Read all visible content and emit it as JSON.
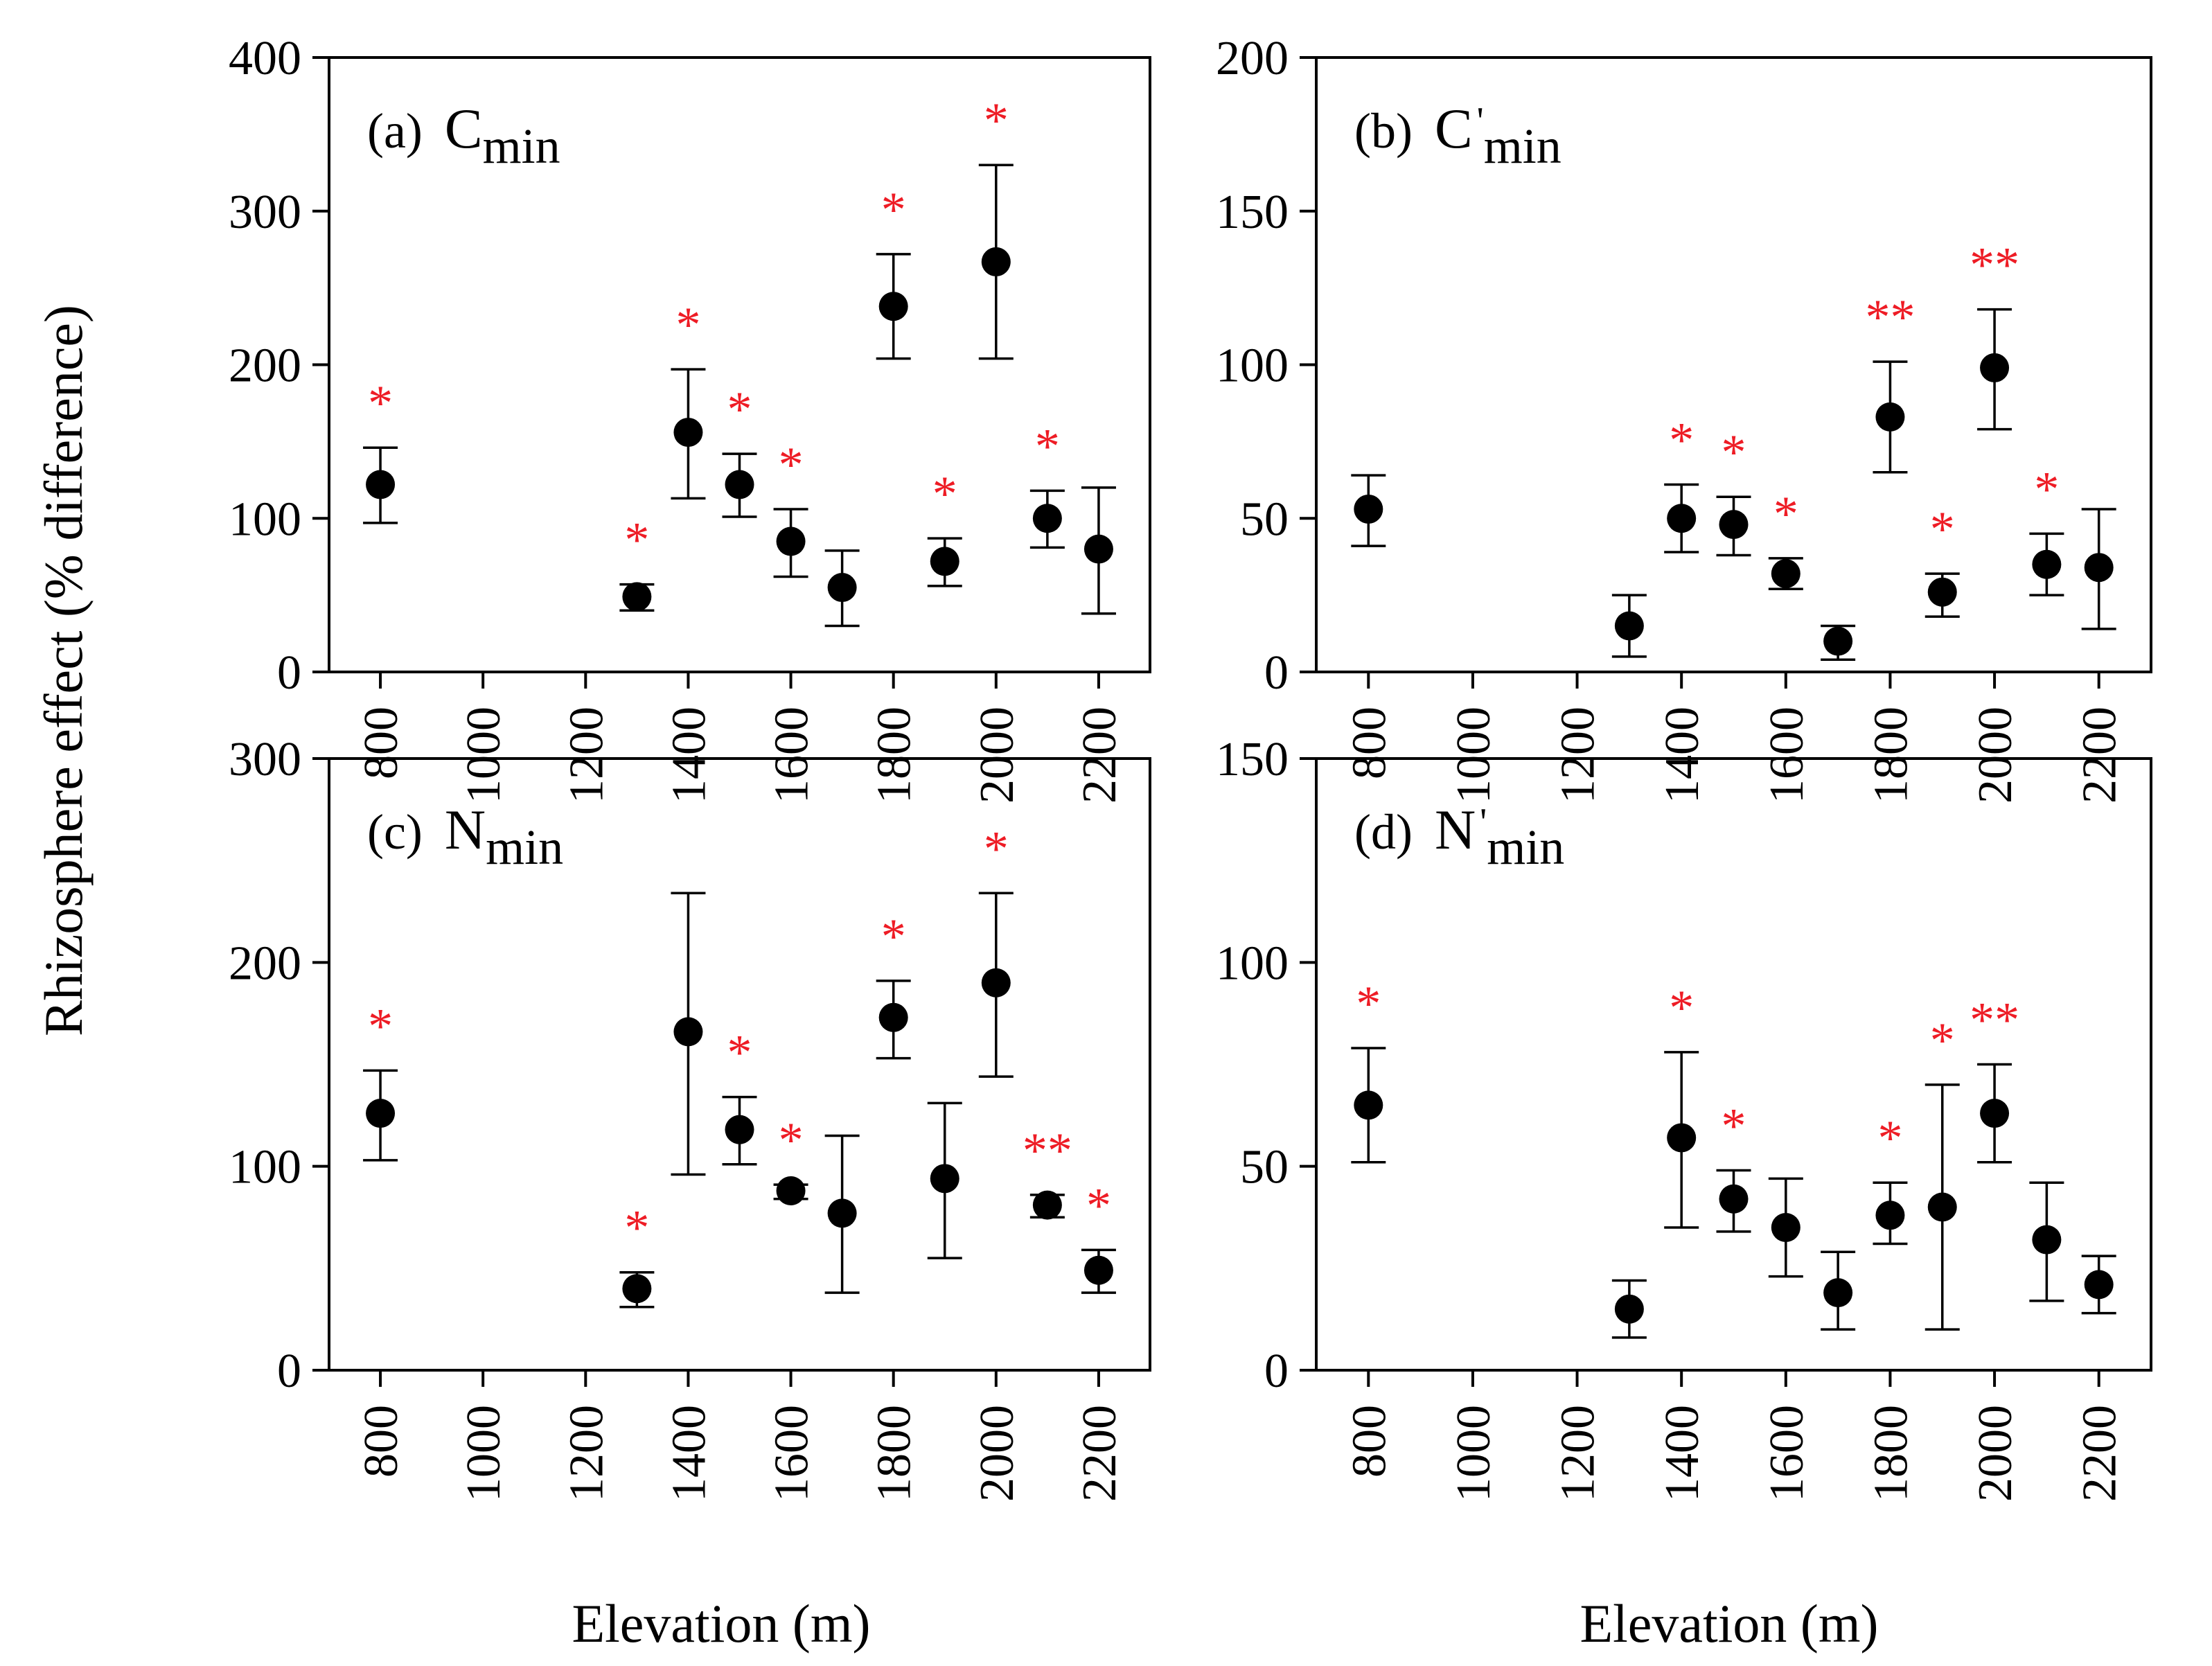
{
  "figure": {
    "ylabel": "Rhizosphere effect (% difference)",
    "xlabel": "Elevation (m)",
    "colors": {
      "marker": "#000000",
      "significance": "#ee1c25",
      "axis": "#000000"
    }
  },
  "chart_data": [
    {
      "type": "scatter",
      "panel": "a",
      "label_prefix": "(a)",
      "var_main": "C",
      "var_prime": "",
      "var_sub": "min",
      "x_ticks": [
        "800",
        "1000",
        "1200",
        "1400",
        "1600",
        "1800",
        "2000",
        "2200"
      ],
      "y_ticks": [
        "0",
        "100",
        "200",
        "300",
        "400"
      ],
      "ylim": [
        0,
        400
      ],
      "xlim": [
        700,
        2300
      ],
      "points": [
        {
          "x": 800,
          "y": 122,
          "lo": 97,
          "hi": 146,
          "sig": "*"
        },
        {
          "x": 1300,
          "y": 49,
          "lo": 40,
          "hi": 57,
          "sig": "*"
        },
        {
          "x": 1400,
          "y": 156,
          "lo": 113,
          "hi": 197,
          "sig": "*"
        },
        {
          "x": 1500,
          "y": 122,
          "lo": 101,
          "hi": 142,
          "sig": "*"
        },
        {
          "x": 1600,
          "y": 85,
          "lo": 62,
          "hi": 106,
          "sig": "*"
        },
        {
          "x": 1700,
          "y": 55,
          "lo": 30,
          "hi": 79,
          "sig": ""
        },
        {
          "x": 1800,
          "y": 238,
          "lo": 204,
          "hi": 272,
          "sig": "*"
        },
        {
          "x": 1900,
          "y": 72,
          "lo": 56,
          "hi": 87,
          "sig": "*"
        },
        {
          "x": 2000,
          "y": 267,
          "lo": 204,
          "hi": 330,
          "sig": "*"
        },
        {
          "x": 2100,
          "y": 100,
          "lo": 81,
          "hi": 118,
          "sig": "*"
        },
        {
          "x": 2200,
          "y": 80,
          "lo": 38,
          "hi": 120,
          "sig": ""
        }
      ]
    },
    {
      "type": "scatter",
      "panel": "b",
      "label_prefix": "(b)",
      "var_main": "C",
      "var_prime": "'",
      "var_sub": "min",
      "x_ticks": [
        "800",
        "1000",
        "1200",
        "1400",
        "1600",
        "1800",
        "2000",
        "2200"
      ],
      "y_ticks": [
        "0",
        "50",
        "100",
        "150",
        "200"
      ],
      "ylim": [
        0,
        200
      ],
      "xlim": [
        700,
        2300
      ],
      "points": [
        {
          "x": 800,
          "y": 53,
          "lo": 41,
          "hi": 64,
          "sig": ""
        },
        {
          "x": 1300,
          "y": 15,
          "lo": 5,
          "hi": 25,
          "sig": ""
        },
        {
          "x": 1400,
          "y": 50,
          "lo": 39,
          "hi": 61,
          "sig": "*"
        },
        {
          "x": 1500,
          "y": 48,
          "lo": 38,
          "hi": 57,
          "sig": "*"
        },
        {
          "x": 1600,
          "y": 32,
          "lo": 27,
          "hi": 37,
          "sig": "*"
        },
        {
          "x": 1700,
          "y": 10,
          "lo": 4,
          "hi": 15,
          "sig": ""
        },
        {
          "x": 1800,
          "y": 83,
          "lo": 65,
          "hi": 101,
          "sig": "**"
        },
        {
          "x": 1900,
          "y": 26,
          "lo": 18,
          "hi": 32,
          "sig": "*"
        },
        {
          "x": 2000,
          "y": 99,
          "lo": 79,
          "hi": 118,
          "sig": "**"
        },
        {
          "x": 2100,
          "y": 35,
          "lo": 25,
          "hi": 45,
          "sig": "*"
        },
        {
          "x": 2200,
          "y": 34,
          "lo": 14,
          "hi": 53,
          "sig": ""
        }
      ]
    },
    {
      "type": "scatter",
      "panel": "c",
      "label_prefix": "(c)",
      "var_main": "N",
      "var_prime": "",
      "var_sub": "min",
      "x_ticks": [
        "800",
        "1000",
        "1200",
        "1400",
        "1600",
        "1800",
        "2000",
        "2200"
      ],
      "y_ticks": [
        "0",
        "100",
        "200",
        "300"
      ],
      "ylim": [
        0,
        300
      ],
      "xlim": [
        700,
        2300
      ],
      "points": [
        {
          "x": 800,
          "y": 126,
          "lo": 103,
          "hi": 147,
          "sig": "*"
        },
        {
          "x": 1300,
          "y": 40,
          "lo": 31,
          "hi": 48,
          "sig": "*"
        },
        {
          "x": 1400,
          "y": 166,
          "lo": 96,
          "hi": 234,
          "sig": ""
        },
        {
          "x": 1500,
          "y": 118,
          "lo": 101,
          "hi": 134,
          "sig": "*"
        },
        {
          "x": 1600,
          "y": 88,
          "lo": 84,
          "hi": 91,
          "sig": "*"
        },
        {
          "x": 1700,
          "y": 77,
          "lo": 38,
          "hi": 115,
          "sig": ""
        },
        {
          "x": 1800,
          "y": 173,
          "lo": 153,
          "hi": 191,
          "sig": "*"
        },
        {
          "x": 1900,
          "y": 94,
          "lo": 55,
          "hi": 131,
          "sig": ""
        },
        {
          "x": 2000,
          "y": 190,
          "lo": 144,
          "hi": 234,
          "sig": "*"
        },
        {
          "x": 2100,
          "y": 81,
          "lo": 75,
          "hi": 86,
          "sig": "**"
        },
        {
          "x": 2200,
          "y": 49,
          "lo": 38,
          "hi": 59,
          "sig": "*"
        }
      ]
    },
    {
      "type": "scatter",
      "panel": "d",
      "label_prefix": "(d)",
      "var_main": "N",
      "var_prime": "'",
      "var_sub": "min",
      "x_ticks": [
        "800",
        "1000",
        "1200",
        "1400",
        "1600",
        "1800",
        "2000",
        "2200"
      ],
      "y_ticks": [
        "0",
        "50",
        "100",
        "150"
      ],
      "ylim": [
        0,
        150
      ],
      "xlim": [
        700,
        2300
      ],
      "points": [
        {
          "x": 800,
          "y": 65,
          "lo": 51,
          "hi": 79,
          "sig": "*"
        },
        {
          "x": 1300,
          "y": 15,
          "lo": 8,
          "hi": 22,
          "sig": ""
        },
        {
          "x": 1400,
          "y": 57,
          "lo": 35,
          "hi": 78,
          "sig": "*"
        },
        {
          "x": 1500,
          "y": 42,
          "lo": 34,
          "hi": 49,
          "sig": "*"
        },
        {
          "x": 1600,
          "y": 35,
          "lo": 23,
          "hi": 47,
          "sig": ""
        },
        {
          "x": 1700,
          "y": 19,
          "lo": 10,
          "hi": 29,
          "sig": ""
        },
        {
          "x": 1800,
          "y": 38,
          "lo": 31,
          "hi": 46,
          "sig": "*"
        },
        {
          "x": 1900,
          "y": 40,
          "lo": 10,
          "hi": 70,
          "sig": "*"
        },
        {
          "x": 2000,
          "y": 63,
          "lo": 51,
          "hi": 75,
          "sig": "**"
        },
        {
          "x": 2100,
          "y": 32,
          "lo": 17,
          "hi": 46,
          "sig": ""
        },
        {
          "x": 2200,
          "y": 21,
          "lo": 14,
          "hi": 28,
          "sig": ""
        }
      ]
    }
  ]
}
